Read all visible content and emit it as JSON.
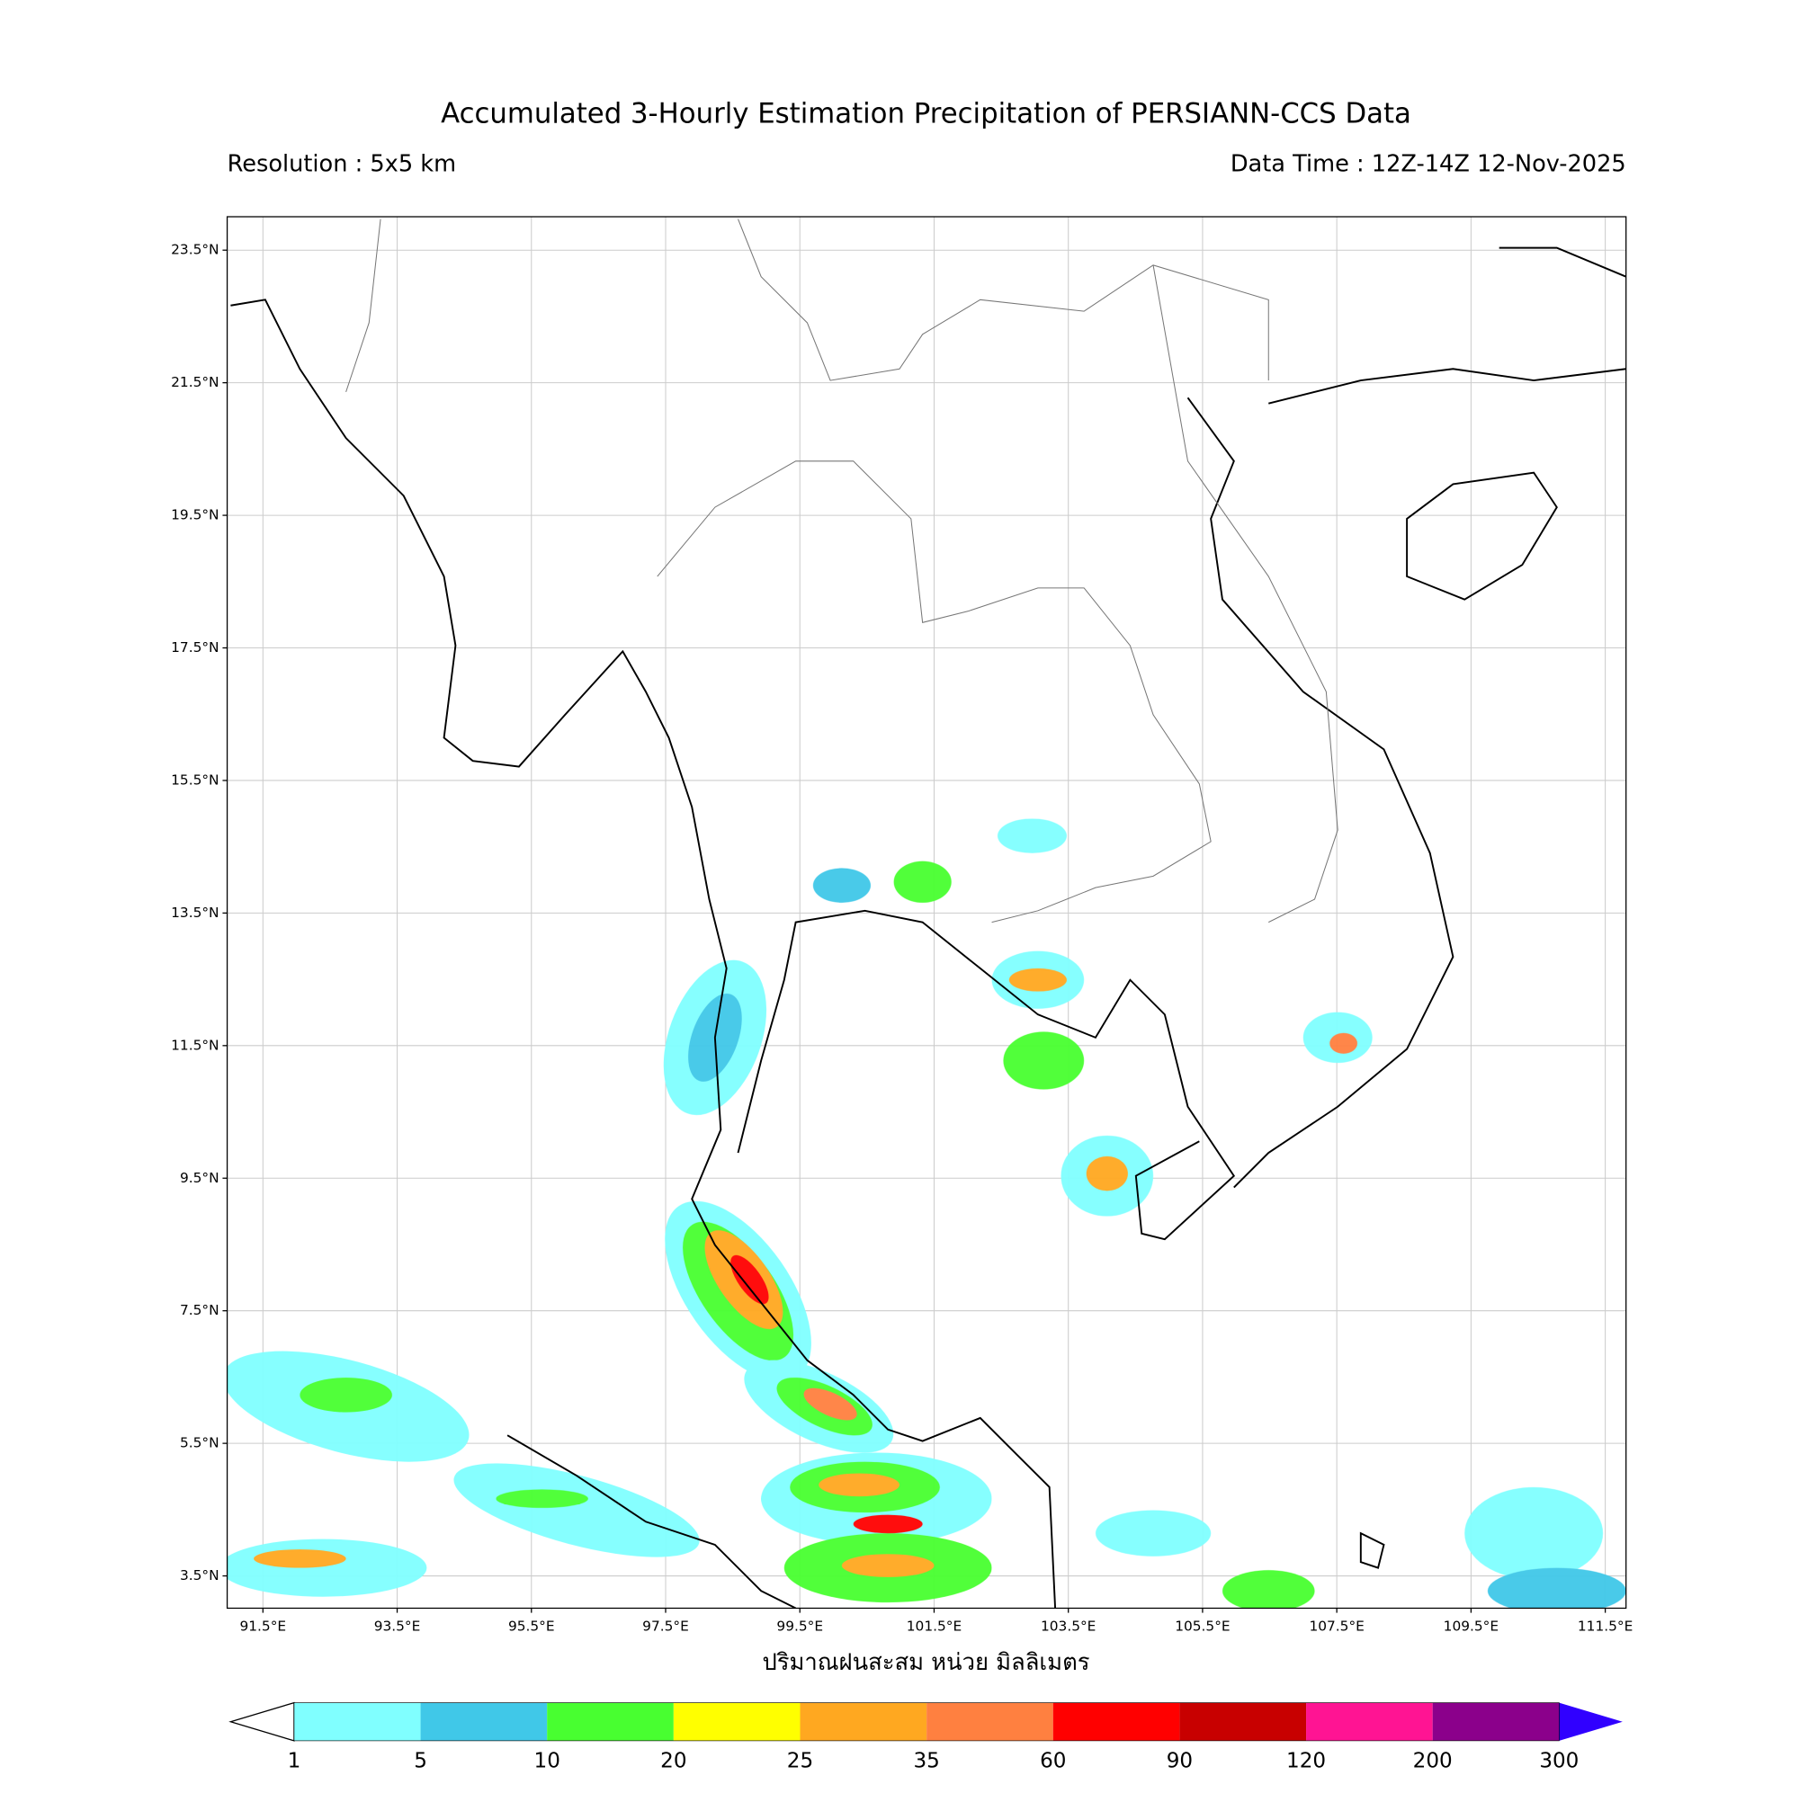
{
  "title": "Accumulated 3-Hourly Estimation Precipitation of PERSIANN-CCS Data",
  "resolution": "Resolution : 5x5 km",
  "data_time": "Data Time : 12Z-14Z 12-Nov-2025",
  "map": {
    "lat_ticks": [
      "23.5°N",
      "21.5°N",
      "19.5°N",
      "17.5°N",
      "15.5°N",
      "13.5°N",
      "11.5°N",
      "9.5°N",
      "7.5°N",
      "5.5°N",
      "3.5°N"
    ],
    "lon_ticks": [
      "91.5°E",
      "93.5°E",
      "95.5°E",
      "97.5°E",
      "99.5°E",
      "101.5°E",
      "103.5°E",
      "105.5°E",
      "107.5°E",
      "109.5°E",
      "111.5°E"
    ]
  },
  "colorbar": {
    "label": "ปริมาณฝนสะสม หน่วย มิลลิเมตร",
    "levels": [
      1,
      5,
      10,
      20,
      25,
      35,
      60,
      90,
      120,
      200,
      300
    ],
    "colors": [
      "#80ffff",
      "#40c8e8",
      "#48ff30",
      "#ffff00",
      "#ffa820",
      "#ff8040",
      "#ff0000",
      "#c80000",
      "#ff1493",
      "#8b008b"
    ],
    "under_color": "#ffffff",
    "over_color": "#3000ff"
  }
}
